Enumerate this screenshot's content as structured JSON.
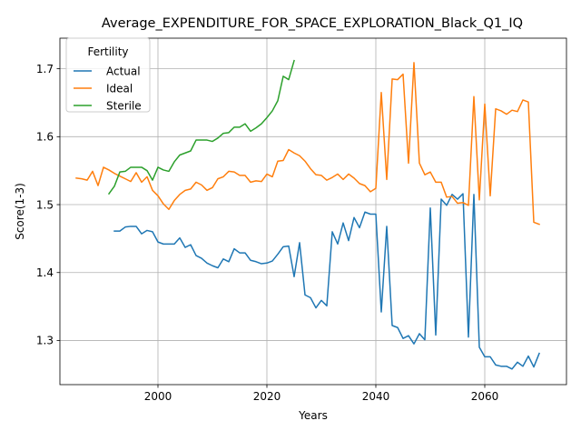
{
  "chart_data": {
    "type": "line",
    "title": "Average_EXPENDITURE_FOR_SPACE_EXPLORATION_Black_Q1_IQ",
    "xlabel": "Years",
    "ylabel": "Score(1-3)",
    "xlim": [
      1982,
      2075
    ],
    "ylim": [
      1.235,
      1.745
    ],
    "xticks": [
      2000,
      2020,
      2040,
      2060
    ],
    "yticks": [
      1.3,
      1.4,
      1.5,
      1.6,
      1.7
    ],
    "xtick_labels": [
      "2000",
      "2020",
      "2040",
      "2060"
    ],
    "ytick_labels": [
      "1.3",
      "1.4",
      "1.5",
      "1.6",
      "1.7"
    ],
    "grid": true,
    "legend": {
      "title": "Fertility",
      "placement": "top-left"
    },
    "series": [
      {
        "name": "Actual",
        "color": "#1f77b4",
        "x": [
          1992,
          1993,
          1994,
          1995,
          1996,
          1997,
          1998,
          1999,
          2000,
          2001,
          2002,
          2003,
          2004,
          2005,
          2006,
          2007,
          2008,
          2009,
          2010,
          2011,
          2012,
          2013,
          2014,
          2015,
          2016,
          2017,
          2018,
          2019,
          2020,
          2021,
          2022,
          2023,
          2024,
          2025,
          2026,
          2027,
          2028,
          2029,
          2030,
          2031,
          2032,
          2033,
          2034,
          2035,
          2036,
          2037,
          2038,
          2039,
          2040,
          2041,
          2042,
          2043,
          2044,
          2045,
          2046,
          2047,
          2048,
          2049,
          2050,
          2051,
          2052,
          2053,
          2054,
          2055,
          2056,
          2057,
          2058,
          2059,
          2060,
          2061,
          2062,
          2063,
          2064,
          2065,
          2066,
          2067,
          2068,
          2069,
          2070
        ],
        "values": [
          1.461,
          1.461,
          1.467,
          1.468,
          1.468,
          1.457,
          1.462,
          1.46,
          1.445,
          1.442,
          1.442,
          1.442,
          1.451,
          1.437,
          1.441,
          1.425,
          1.421,
          1.414,
          1.41,
          1.407,
          1.42,
          1.416,
          1.435,
          1.429,
          1.429,
          1.418,
          1.416,
          1.413,
          1.414,
          1.417,
          1.427,
          1.438,
          1.439,
          1.394,
          1.444,
          1.367,
          1.363,
          1.348,
          1.359,
          1.351,
          1.46,
          1.442,
          1.473,
          1.447,
          1.481,
          1.466,
          1.489,
          1.486,
          1.486,
          1.342,
          1.468,
          1.322,
          1.319,
          1.303,
          1.307,
          1.295,
          1.31,
          1.301,
          1.495,
          1.308,
          1.508,
          1.499,
          1.515,
          1.508,
          1.516,
          1.305,
          1.515,
          1.29,
          1.276,
          1.276,
          1.264,
          1.262,
          1.262,
          1.258,
          1.268,
          1.262,
          1.277,
          1.261,
          1.281
        ]
      },
      {
        "name": "Ideal",
        "color": "#ff7f0e",
        "x": [
          1985,
          1986,
          1987,
          1988,
          1989,
          1990,
          1991,
          1992,
          1993,
          1994,
          1995,
          1996,
          1997,
          1998,
          1999,
          2000,
          2001,
          2002,
          2003,
          2004,
          2005,
          2006,
          2007,
          2008,
          2009,
          2010,
          2011,
          2012,
          2013,
          2014,
          2015,
          2016,
          2017,
          2018,
          2019,
          2020,
          2021,
          2022,
          2023,
          2024,
          2025,
          2026,
          2027,
          2028,
          2029,
          2030,
          2031,
          2032,
          2033,
          2034,
          2035,
          2036,
          2037,
          2038,
          2039,
          2040,
          2041,
          2042,
          2043,
          2044,
          2045,
          2046,
          2047,
          2048,
          2049,
          2050,
          2051,
          2052,
          2053,
          2054,
          2055,
          2056,
          2057,
          2058,
          2059,
          2060,
          2061,
          2062,
          2063,
          2064,
          2065,
          2066,
          2067,
          2068,
          2069,
          2070
        ],
        "values": [
          1.539,
          1.538,
          1.536,
          1.549,
          1.528,
          1.555,
          1.551,
          1.546,
          1.542,
          1.538,
          1.534,
          1.547,
          1.533,
          1.541,
          1.521,
          1.513,
          1.501,
          1.493,
          1.506,
          1.515,
          1.521,
          1.523,
          1.533,
          1.529,
          1.521,
          1.525,
          1.538,
          1.541,
          1.549,
          1.548,
          1.543,
          1.543,
          1.533,
          1.535,
          1.534,
          1.545,
          1.541,
          1.564,
          1.565,
          1.581,
          1.576,
          1.572,
          1.564,
          1.553,
          1.544,
          1.543,
          1.536,
          1.54,
          1.545,
          1.537,
          1.545,
          1.539,
          1.531,
          1.528,
          1.519,
          1.524,
          1.665,
          1.537,
          1.685,
          1.684,
          1.692,
          1.561,
          1.709,
          1.561,
          1.544,
          1.548,
          1.533,
          1.533,
          1.511,
          1.512,
          1.502,
          1.503,
          1.499,
          1.659,
          1.507,
          1.648,
          1.513,
          1.641,
          1.638,
          1.633,
          1.639,
          1.637,
          1.654,
          1.651,
          1.474,
          1.471
        ]
      },
      {
        "name": "Sterile",
        "color": "#2ca02c",
        "x": [
          1991,
          1992,
          1993,
          1994,
          1995,
          1996,
          1997,
          1998,
          1999,
          2000,
          2001,
          2002,
          2003,
          2004,
          2005,
          2006,
          2007,
          2008,
          2009,
          2010,
          2011,
          2012,
          2013,
          2014,
          2015,
          2016,
          2017,
          2018,
          2019,
          2020,
          2021,
          2022,
          2023,
          2024,
          2025
        ],
        "values": [
          1.516,
          1.527,
          1.548,
          1.549,
          1.555,
          1.555,
          1.555,
          1.55,
          1.536,
          1.555,
          1.551,
          1.549,
          1.563,
          1.573,
          1.576,
          1.579,
          1.595,
          1.595,
          1.595,
          1.593,
          1.598,
          1.605,
          1.606,
          1.614,
          1.614,
          1.619,
          1.608,
          1.613,
          1.619,
          1.628,
          1.638,
          1.653,
          1.689,
          1.684,
          1.712
        ]
      }
    ]
  }
}
